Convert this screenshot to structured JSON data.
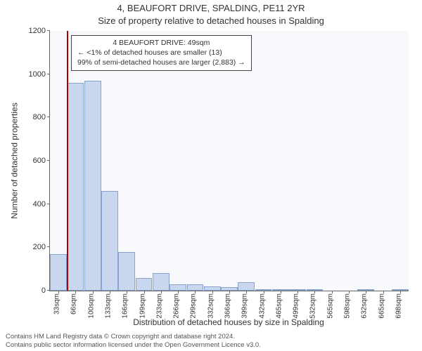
{
  "title_main": "4, BEAUFORT DRIVE, SPALDING, PE11 2YR",
  "title_sub": "Size of property relative to detached houses in Spalding",
  "y_axis": {
    "label": "Number of detached properties",
    "lim": [
      0,
      1200
    ],
    "tick_step": 200,
    "ticks": [
      0,
      200,
      400,
      600,
      800,
      1000,
      1200
    ]
  },
  "x_axis": {
    "label": "Distribution of detached houses by size in Spalding",
    "categories": [
      "33sqm",
      "66sqm",
      "100sqm",
      "133sqm",
      "166sqm",
      "199sqm",
      "233sqm",
      "266sqm",
      "299sqm",
      "332sqm",
      "366sqm",
      "399sqm",
      "432sqm",
      "465sqm",
      "499sqm",
      "532sqm",
      "565sqm",
      "598sqm",
      "632sqm",
      "665sqm",
      "698sqm"
    ]
  },
  "bars": {
    "values": [
      170,
      960,
      970,
      460,
      180,
      60,
      80,
      30,
      30,
      20,
      15,
      40,
      3,
      3,
      3,
      3,
      0,
      0,
      3,
      0,
      3
    ],
    "fill_color": "#c9d7ee",
    "edge_color": "#8aa3cd",
    "bar_width_ratio": 0.98
  },
  "marker": {
    "category_index": 0.5,
    "color": "#b00000"
  },
  "annotation": {
    "lines": [
      "4 BEAUFORT DRIVE: 49sqm",
      "← <1% of detached houses are smaller (13)",
      "99% of semi-detached houses are larger (2,883) →"
    ],
    "border_color": "#444444",
    "background_color": "#ffffff",
    "fontsize": 10.5
  },
  "plot": {
    "background_color": "#f7f9fc",
    "axis_color": "#666666",
    "text_color": "#333333"
  },
  "footnote": {
    "line1": "Contains HM Land Registry data © Crown copyright and database right 2024.",
    "line2": "Contains public sector information licensed under the Open Government Licence v3.0."
  }
}
